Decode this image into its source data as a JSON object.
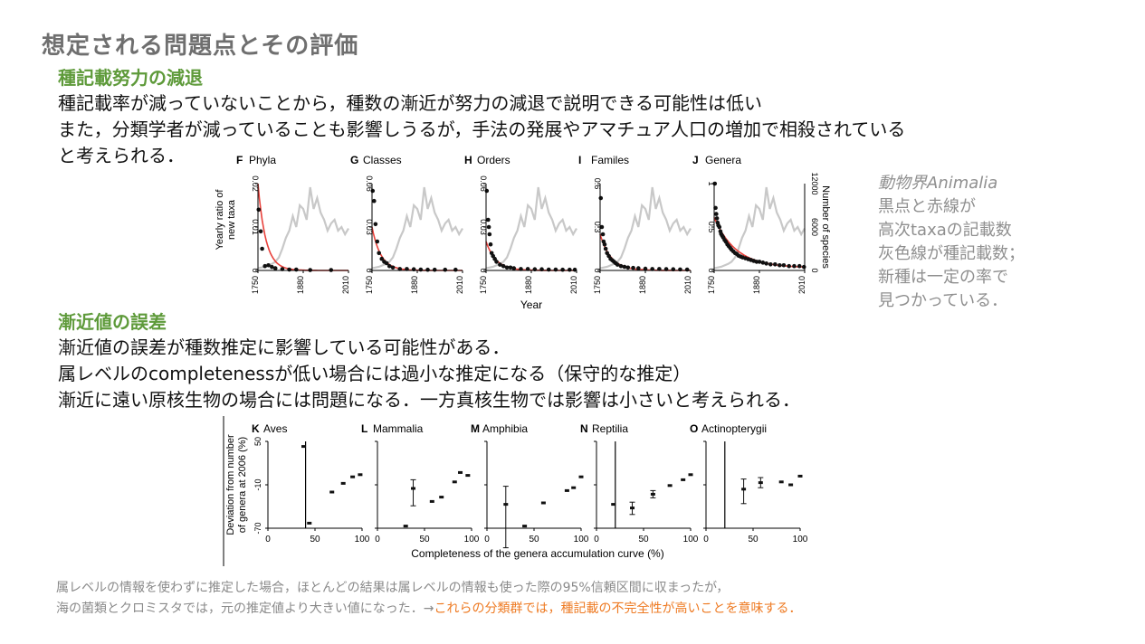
{
  "slide": {
    "title": "想定される問題点とその評価",
    "section1": {
      "heading": "種記載努力の減退",
      "lines": [
        "種記載率が減っていないことから，種数の漸近が努力の減退で説明できる可能性は低い",
        "また，分類学者が減っていることも影響しうるが，手法の発展やアマチュア人口の増加で相殺されている",
        "と考えられる．"
      ]
    },
    "side_note": {
      "line1": "動物界Animalia",
      "lines": [
        "黒点と赤線が",
        "高次taxaの記載数",
        "灰色線が種記載数；",
        "新種は一定の率で",
        "見つかっている．"
      ]
    },
    "section2": {
      "heading": "漸近値の誤差",
      "lines": [
        "漸近値の誤差が種数推定に影響している可能性がある．",
        "属レベルのcompletenessが低い場合には過小な推定になる（保守的な推定）",
        "漸近に遠い原核生物の場合には問題になる．一方真核生物では影響は小さいと考えられる．"
      ]
    },
    "footer": {
      "line1": "属レベルの情報を使わずに推定した場合，ほとんどの結果は属レベルの情報も使った際の95%信頼区間に収まったが，",
      "line2_plain": "海の菌類とクロミスタでは，元の推定値より大きい値になった．→",
      "line2_highlight": "これらの分類群では，種記載の不完全性が高いことを意味する．"
    },
    "colors": {
      "title": "#6f6f6f",
      "heading": "#5e9a3a",
      "side": "#8f8f8f",
      "highlight": "#ee7a22",
      "fit": "#e8413b",
      "species": "#c8c8c8"
    }
  },
  "chart_data": [
    {
      "type": "line",
      "panels": [
        {
          "letter": "F",
          "name": "Phyla",
          "ytick_labels": [
            "0.02",
            "0.01",
            "0"
          ],
          "ymax": 0.02,
          "fit": {
            "a": 0.02,
            "k": 0.045
          },
          "points": [
            [
              1752,
              0.014
            ],
            [
              1758,
              0.009
            ],
            [
              1762,
              0.005
            ],
            [
              1770,
              0.001
            ],
            [
              1780,
              0.0012
            ],
            [
              1790,
              0.0008
            ],
            [
              1800,
              0.0005
            ],
            [
              1820,
              0.0003
            ],
            [
              1840,
              0.0002
            ],
            [
              1860,
              0.0002
            ],
            [
              1900,
              0.0001
            ],
            [
              1960,
              0.0001
            ]
          ]
        },
        {
          "letter": "G",
          "name": "Classes",
          "ytick_labels": [
            "0.06",
            "0.03",
            "0"
          ],
          "ymax": 0.06,
          "fit": {
            "a": 0.03,
            "k": 0.04
          },
          "points": [
            [
              1752,
              0.055
            ],
            [
              1756,
              0.048
            ],
            [
              1760,
              0.032
            ],
            [
              1765,
              0.02
            ],
            [
              1770,
              0.012
            ],
            [
              1778,
              0.008
            ],
            [
              1785,
              0.006
            ],
            [
              1792,
              0.005
            ],
            [
              1800,
              0.003
            ],
            [
              1810,
              0.002
            ],
            [
              1830,
              0.001
            ],
            [
              1850,
              0.001
            ],
            [
              1870,
              0.0008
            ],
            [
              1890,
              0.0006
            ],
            [
              1910,
              0.0005
            ],
            [
              1930,
              0.0005
            ],
            [
              1960,
              0.0005
            ],
            [
              1990,
              0.0005
            ]
          ]
        },
        {
          "letter": "H",
          "name": "Orders",
          "ytick_labels": [
            "0.06",
            "0.03",
            "0"
          ],
          "ymax": 0.06,
          "fit": {
            "a": 0.02,
            "k": 0.035
          },
          "points": [
            [
              1752,
              0.055
            ],
            [
              1756,
              0.035
            ],
            [
              1758,
              0.03
            ],
            [
              1760,
              0.025
            ],
            [
              1763,
              0.018
            ],
            [
              1766,
              0.012
            ],
            [
              1770,
              0.01
            ],
            [
              1775,
              0.008
            ],
            [
              1780,
              0.006
            ],
            [
              1790,
              0.004
            ],
            [
              1800,
              0.003
            ],
            [
              1810,
              0.002
            ],
            [
              1820,
              0.002
            ],
            [
              1830,
              0.0015
            ],
            [
              1850,
              0.001
            ],
            [
              1870,
              0.001
            ],
            [
              1890,
              0.0008
            ],
            [
              1910,
              0.0008
            ],
            [
              1930,
              0.0006
            ],
            [
              1950,
              0.0006
            ],
            [
              1970,
              0.0005
            ],
            [
              1990,
              0.0005
            ],
            [
              2005,
              0.0005
            ]
          ]
        },
        {
          "letter": "I",
          "name": "Familes",
          "ytick_labels": [
            "0.6",
            "0.3",
            "0"
          ],
          "ymax": 0.6,
          "fit": {
            "a": 0.25,
            "k": 0.032
          },
          "points": [
            [
              1752,
              0.5
            ],
            [
              1755,
              0.3
            ],
            [
              1758,
              0.25
            ],
            [
              1760,
              0.2
            ],
            [
              1763,
              0.18
            ],
            [
              1766,
              0.15
            ],
            [
              1770,
              0.12
            ],
            [
              1775,
              0.1
            ],
            [
              1780,
              0.08
            ],
            [
              1785,
              0.07
            ],
            [
              1790,
              0.06
            ],
            [
              1795,
              0.05
            ],
            [
              1800,
              0.04
            ],
            [
              1810,
              0.03
            ],
            [
              1820,
              0.025
            ],
            [
              1830,
              0.02
            ],
            [
              1845,
              0.018
            ],
            [
              1860,
              0.015
            ],
            [
              1880,
              0.012
            ],
            [
              1900,
              0.01
            ],
            [
              1920,
              0.01
            ],
            [
              1940,
              0.009
            ],
            [
              1960,
              0.008
            ],
            [
              1980,
              0.007
            ],
            [
              2000,
              0.006
            ]
          ]
        },
        {
          "letter": "J",
          "name": "Genera",
          "ytick_labels": [
            "1",
            "0.5",
            "0"
          ],
          "ymax": 1.0,
          "fit": {
            "a": 0.58,
            "k": 0.016,
            "c": 0.03
          },
          "right_axis_label": "Number of species",
          "right_tick_labels": [
            "12000",
            "6000",
            "0"
          ],
          "points": [
            [
              1752,
              1.0
            ],
            [
              1754,
              0.72
            ],
            [
              1756,
              0.65
            ],
            [
              1758,
              0.6
            ],
            [
              1760,
              0.55
            ],
            [
              1762,
              0.52
            ],
            [
              1765,
              0.5
            ],
            [
              1768,
              0.45
            ],
            [
              1770,
              0.42
            ],
            [
              1773,
              0.4
            ],
            [
              1776,
              0.38
            ],
            [
              1780,
              0.35
            ],
            [
              1784,
              0.33
            ],
            [
              1788,
              0.3
            ],
            [
              1792,
              0.28
            ],
            [
              1796,
              0.26
            ],
            [
              1800,
              0.24
            ],
            [
              1805,
              0.22
            ],
            [
              1810,
              0.2
            ],
            [
              1815,
              0.19
            ],
            [
              1820,
              0.17
            ],
            [
              1826,
              0.16
            ],
            [
              1832,
              0.15
            ],
            [
              1840,
              0.14
            ],
            [
              1848,
              0.13
            ],
            [
              1856,
              0.12
            ],
            [
              1864,
              0.11
            ],
            [
              1872,
              0.1
            ],
            [
              1880,
              0.1
            ],
            [
              1890,
              0.09
            ],
            [
              1900,
              0.08
            ],
            [
              1912,
              0.07
            ],
            [
              1925,
              0.07
            ],
            [
              1938,
              0.06
            ],
            [
              1950,
              0.06
            ],
            [
              1965,
              0.05
            ],
            [
              1980,
              0.05
            ],
            [
              1995,
              0.05
            ],
            [
              2008,
              0.04
            ]
          ]
        }
      ],
      "x_tick_labels": [
        "1750",
        "1880",
        "2010"
      ],
      "xlim": [
        1750,
        2010
      ],
      "xlabel": "Year",
      "ylabel_lines": [
        "Yearly ratio of",
        "new taxa"
      ],
      "species_series": {
        "name": "Number of species",
        "ymax": 12000,
        "x": [
          1750,
          1770,
          1790,
          1800,
          1810,
          1820,
          1830,
          1840,
          1850,
          1860,
          1870,
          1880,
          1890,
          1900,
          1910,
          1920,
          1930,
          1940,
          1950,
          1960,
          1970,
          1980,
          1990,
          2000,
          2010
        ],
        "y": [
          300,
          500,
          900,
          1200,
          1800,
          3000,
          4500,
          5500,
          7500,
          6000,
          9000,
          8500,
          7000,
          11500,
          8500,
          10000,
          8000,
          7000,
          5500,
          6500,
          7000,
          5500,
          6000,
          5000,
          5800
        ]
      }
    },
    {
      "type": "scatter",
      "panels": [
        {
          "letter": "K",
          "name": "Aves",
          "vline": 40,
          "points": [
            [
              38,
              43,
              0,
              0
            ],
            [
              44,
              -63,
              0,
              0
            ],
            [
              68,
              -20,
              0,
              0
            ],
            [
              80,
              -8,
              0,
              0
            ],
            [
              90,
              1,
              0,
              0
            ],
            [
              98,
              4,
              0,
              0
            ]
          ]
        },
        {
          "letter": "L",
          "name": "Mammalia",
          "vline": null,
          "points": [
            [
              30,
              -67,
              0,
              0
            ],
            [
              38,
              -15,
              12,
              -24
            ],
            [
              58,
              -33,
              0,
              0
            ],
            [
              68,
              -27,
              0,
              0
            ],
            [
              82,
              -6,
              0,
              0
            ],
            [
              88,
              7,
              0,
              0
            ],
            [
              96,
              3,
              0,
              0
            ]
          ]
        },
        {
          "letter": "M",
          "name": "Amphibia",
          "vline": null,
          "points": [
            [
              20,
              -37,
              25,
              -60
            ],
            [
              40,
              -67,
              0,
              0
            ],
            [
              60,
              -35,
              0,
              0
            ],
            [
              85,
              -18,
              0,
              0
            ],
            [
              92,
              -14,
              0,
              0
            ],
            [
              100,
              1,
              0,
              0
            ]
          ]
        },
        {
          "letter": "N",
          "name": "Reptilia",
          "vline": 20,
          "points": [
            [
              18,
              -37,
              0,
              0
            ],
            [
              38,
              -42,
              8,
              -9
            ],
            [
              60,
              -23,
              5,
              -5
            ],
            [
              78,
              -11,
              0,
              0
            ],
            [
              92,
              -3,
              0,
              0
            ],
            [
              100,
              4,
              0,
              0
            ]
          ]
        },
        {
          "letter": "O",
          "name": "Actinopterygii",
          "vline": 20,
          "points": [
            [
              40,
              -16,
              14,
              -20
            ],
            [
              58,
              -7,
              7,
              -7
            ],
            [
              80,
              -6,
              0,
              0
            ],
            [
              90,
              -10,
              0,
              0
            ],
            [
              100,
              2,
              0,
              0
            ]
          ]
        }
      ],
      "ytick_labels": [
        "50",
        "-10",
        "-70"
      ],
      "ylim": [
        -70,
        50
      ],
      "x_tick_labels": [
        "0",
        "50",
        "100"
      ],
      "xlim": [
        0,
        100
      ],
      "xlabel": "Completeness of the genera accumulation curve (%)",
      "ylabel_lines": [
        "Deviation from number",
        "of genera at 2006 (%)"
      ]
    }
  ]
}
